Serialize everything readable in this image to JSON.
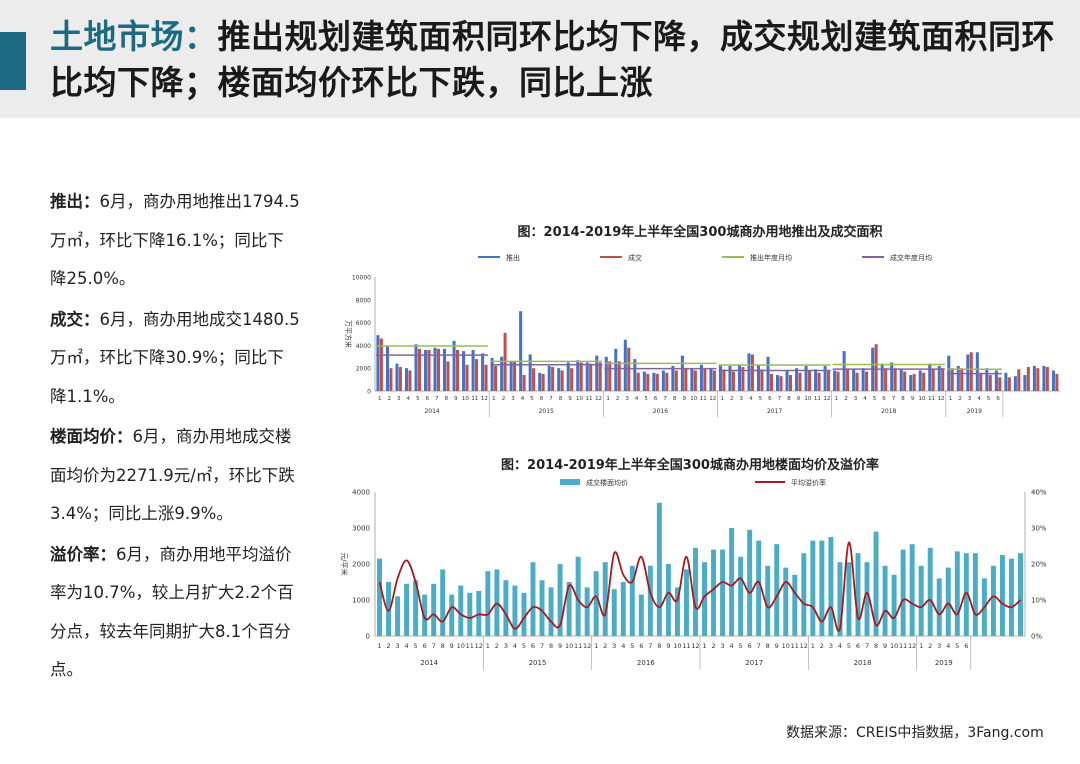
{
  "header": {
    "title_prefix": "土地市场：",
    "title_rest": "推出规划建筑面积同环比均下降，成交规划建筑面积同环比均下降；楼面均价环比下跌，同比上涨"
  },
  "sidebar": {
    "paragraphs": [
      {
        "label": "推出：",
        "text": "6月，商办用地推出1794.5万㎡，环比下降16.1%；同比下降25.0%。"
      },
      {
        "label": "成交：",
        "text": "6月，商办用地成交1480.5万㎡，环比下降30.9%；同比下降1.1%。"
      },
      {
        "label": "楼面均价：",
        "text": "6月，商办用地成交楼面均价为2271.9元/㎡，环比下跌3.4%；同比上涨9.9%。"
      },
      {
        "label": "溢价率：",
        "text": "6月，商办用地平均溢价率为10.7%，较上月扩大2.2个百分点，较去年同期扩大8.1个百分点。"
      }
    ]
  },
  "footer": {
    "source": "数据来源：CREIS中指数据，3Fang.com"
  },
  "colors": {
    "accent": "#1c6a83",
    "push": "#4472c4",
    "deal": "#c0504d",
    "push_avg": "#9bbb59",
    "deal_avg": "#8064a2",
    "price_bar": "#4bacc6",
    "premium_line": "#a51c1c"
  },
  "chart_data": [
    {
      "type": "bar",
      "title": "图：2014-2019年上半年全国300城商办用地推出及成交面积",
      "ylabel": "万平方米",
      "ylim": [
        0,
        10000
      ],
      "yticks": [
        0,
        2000,
        4000,
        6000,
        8000,
        10000
      ],
      "legend_position": "top",
      "years": [
        "2014",
        "2015",
        "2016",
        "2017",
        "2018",
        "2019"
      ],
      "months_per_year": [
        12,
        12,
        12,
        12,
        12,
        6
      ],
      "series": [
        {
          "name": "推出",
          "values": [
            4900,
            3900,
            2400,
            2000,
            4100,
            3600,
            3800,
            3700,
            4400,
            3500,
            3600,
            3300,
            2900,
            3000,
            2600,
            7000,
            3200,
            1600,
            2200,
            2000,
            2500,
            2700,
            2500,
            3100,
            3000,
            3700,
            4500,
            2800,
            1700,
            1600,
            1800,
            2200,
            3100,
            2000,
            2300,
            2000,
            2300,
            2200,
            2300,
            3300,
            2300,
            3000,
            1400,
            1800,
            2000,
            2200,
            1900,
            2200,
            1800,
            3500,
            1900,
            2000,
            3800,
            2400,
            2500,
            1900,
            1400,
            1800,
            2400,
            2200,
            3100,
            2200,
            3200,
            3400,
            2000,
            1800,
            1600,
            1300,
            1400,
            2200,
            2200,
            1800
          ]
        },
        {
          "name": "成交",
          "values": [
            4600,
            2000,
            2100,
            1800,
            3700,
            3600,
            3700,
            2600,
            3600,
            2300,
            2800,
            2300,
            2200,
            5100,
            2600,
            1400,
            2000,
            1500,
            2100,
            1800,
            2000,
            2500,
            2400,
            2500,
            2600,
            2600,
            3800,
            1600,
            1500,
            1500,
            1600,
            1800,
            2000,
            1800,
            2000,
            1800,
            1900,
            1700,
            2100,
            3200,
            1900,
            1500,
            1300,
            1400,
            1600,
            1800,
            1600,
            1800,
            1700,
            1900,
            1600,
            1700,
            4100,
            2000,
            2000,
            1700,
            1500,
            1600,
            1900,
            2000,
            2000,
            2000,
            3400,
            1600,
            1400,
            1200,
            1200,
            1900,
            2100,
            2000,
            2100,
            1500
          ]
        },
        {
          "name": "推出年度月均",
          "values": [
            3950,
            2600,
            2420,
            2280,
            2330,
            1910
          ]
        },
        {
          "name": "成交年度月均",
          "values": [
            3150,
            2300,
            1960,
            1800,
            1920,
            1520
          ]
        }
      ]
    },
    {
      "type": "bar",
      "title": "图：2014-2019年上半年全国300城商办用地楼面均价及溢价率",
      "ylabel": "元/平米",
      "ylim": [
        0,
        4000
      ],
      "yticks": [
        0,
        1000,
        2000,
        3000,
        4000
      ],
      "y2lim": [
        0,
        40
      ],
      "y2ticks": [
        "0%",
        "10%",
        "20%",
        "30%",
        "40%"
      ],
      "legend_position": "top",
      "years": [
        "2014",
        "2015",
        "2016",
        "2017",
        "2018",
        "2019"
      ],
      "months_per_year": [
        12,
        12,
        12,
        12,
        12,
        6
      ],
      "series": [
        {
          "name": "成交楼面均价",
          "axis": "left",
          "values": [
            2150,
            1500,
            1100,
            1450,
            1550,
            1150,
            1450,
            1850,
            1150,
            1400,
            1200,
            1250,
            1800,
            1850,
            1550,
            1400,
            1200,
            2050,
            1550,
            1350,
            2000,
            1500,
            2200,
            1350,
            1800,
            2050,
            1300,
            1500,
            1950,
            1150,
            1950,
            3700,
            2000,
            1350,
            1850,
            2450,
            2050,
            2400,
            2400,
            3000,
            2200,
            2950,
            2650,
            1950,
            2550,
            1900,
            1700,
            2300,
            2650,
            2650,
            2750,
            2050,
            2050,
            2300,
            2050,
            2900,
            1950,
            1700,
            2400,
            2550,
            1950,
            2450,
            1600,
            1900,
            2350,
            2300,
            2300,
            1600,
            1950,
            2250,
            2150,
            2300
          ]
        },
        {
          "name": "平均溢价率",
          "axis": "right",
          "values": [
            15,
            7,
            16,
            21,
            15,
            5,
            6,
            4,
            8,
            6,
            5,
            6,
            6,
            9,
            6,
            2,
            5,
            8,
            7,
            4,
            3,
            14,
            10,
            8,
            11,
            6,
            23,
            17,
            15,
            22,
            12,
            8,
            12,
            10,
            22,
            8,
            11,
            13,
            15,
            14,
            16,
            12,
            15,
            8,
            11,
            15,
            12,
            9,
            8,
            4,
            8,
            2,
            26,
            5,
            12,
            3,
            7,
            5,
            10,
            9,
            8,
            10,
            6,
            9,
            6,
            12,
            6,
            8,
            11,
            9,
            8,
            10
          ]
        }
      ]
    }
  ]
}
